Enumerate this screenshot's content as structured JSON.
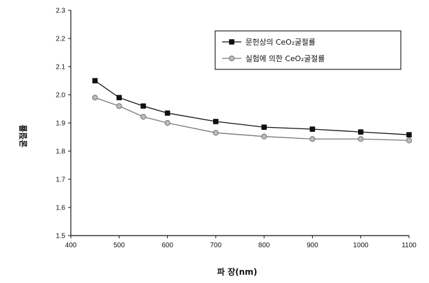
{
  "chart_data": {
    "type": "line",
    "title": "",
    "xlabel": "파 장(nm)",
    "ylabel": "굴절률",
    "xlim": [
      400,
      1100
    ],
    "ylim": [
      1.5,
      2.3
    ],
    "xticks": [
      "400",
      "500",
      "600",
      "700",
      "800",
      "900",
      "1000",
      "1100"
    ],
    "yticks": [
      "1.5",
      "1.6",
      "1.7",
      "1.8",
      "1.9",
      "2.0",
      "2.1",
      "2.2",
      "2.3"
    ],
    "legend_position": "top-right",
    "series": [
      {
        "name": "문헌상의 CeO₂굴절률",
        "marker": "square",
        "color": "#111111",
        "x": [
          450,
          500,
          550,
          600,
          700,
          800,
          900,
          1000,
          1100
        ],
        "y": [
          2.05,
          1.99,
          1.96,
          1.935,
          1.905,
          1.885,
          1.878,
          1.868,
          1.858
        ]
      },
      {
        "name": "실험에 의한 CeO₂굴절률",
        "marker": "circle",
        "color": "#777777",
        "x": [
          450,
          500,
          550,
          600,
          700,
          800,
          900,
          1000,
          1100
        ],
        "y": [
          1.99,
          1.96,
          1.922,
          1.9,
          1.865,
          1.852,
          1.843,
          1.843,
          1.838
        ]
      }
    ]
  }
}
